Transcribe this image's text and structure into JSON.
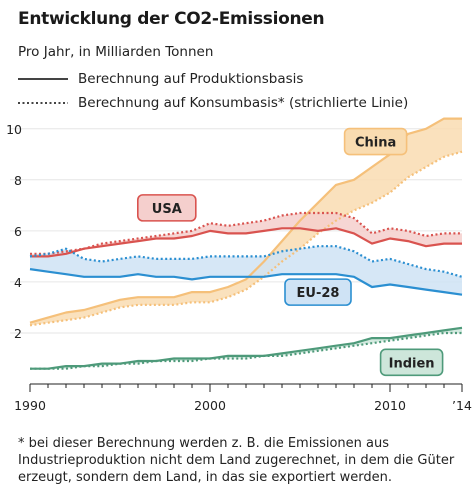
{
  "chart_data": {
    "type": "line",
    "title": "Entwicklung der CO2-Emissionen",
    "subtitle": "Pro Jahr, in Milliarden Tonnen",
    "legend": [
      {
        "label": "Berechnung auf Produktionsbasis",
        "style": "solid"
      },
      {
        "label": "Berechnung auf Konsumbasis* (strichlierte Linie)",
        "style": "dotted"
      }
    ],
    "x_ticks": [
      "1990",
      "2000",
      "2010",
      "’14"
    ],
    "y_ticks": [
      "2",
      "4",
      "6",
      "8",
      "10"
    ],
    "xlim": [
      1990,
      2014
    ],
    "ylim": [
      0,
      10.5
    ],
    "grid": "horizontal",
    "x": [
      1990,
      1991,
      1992,
      1993,
      1994,
      1995,
      1996,
      1997,
      1998,
      1999,
      2000,
      2001,
      2002,
      2003,
      2004,
      2005,
      2006,
      2007,
      2008,
      2009,
      2010,
      2011,
      2012,
      2013,
      2014
    ],
    "series": [
      {
        "name": "China",
        "color": "#f5c07a",
        "fill": "#f9dcb1",
        "production": [
          2.4,
          2.6,
          2.8,
          2.9,
          3.1,
          3.3,
          3.4,
          3.4,
          3.4,
          3.6,
          3.6,
          3.8,
          4.1,
          4.8,
          5.6,
          6.4,
          7.1,
          7.8,
          8.0,
          8.5,
          9.0,
          9.8,
          10.0,
          10.4,
          10.4
        ],
        "consumption": [
          2.3,
          2.4,
          2.5,
          2.6,
          2.8,
          3.0,
          3.1,
          3.1,
          3.1,
          3.2,
          3.2,
          3.4,
          3.7,
          4.2,
          4.8,
          5.3,
          5.9,
          6.4,
          6.8,
          7.1,
          7.5,
          8.1,
          8.5,
          8.9,
          9.1
        ],
        "label": "China"
      },
      {
        "name": "USA",
        "color": "#d9534f",
        "fill": "#f5cfcd",
        "production": [
          5.0,
          5.0,
          5.1,
          5.3,
          5.4,
          5.5,
          5.6,
          5.7,
          5.7,
          5.8,
          6.0,
          5.9,
          5.9,
          6.0,
          6.1,
          6.1,
          6.0,
          6.1,
          5.9,
          5.5,
          5.7,
          5.6,
          5.4,
          5.5,
          5.5
        ],
        "consumption": [
          5.1,
          5.1,
          5.2,
          5.3,
          5.5,
          5.6,
          5.7,
          5.8,
          5.9,
          6.0,
          6.3,
          6.2,
          6.3,
          6.4,
          6.6,
          6.7,
          6.7,
          6.7,
          6.5,
          5.9,
          6.1,
          6.0,
          5.8,
          5.9,
          5.9
        ],
        "label": "USA"
      },
      {
        "name": "EU-28",
        "color": "#2b8fd1",
        "fill": "#cfe3f5",
        "production": [
          4.5,
          4.4,
          4.3,
          4.2,
          4.2,
          4.2,
          4.3,
          4.2,
          4.2,
          4.1,
          4.2,
          4.2,
          4.2,
          4.2,
          4.3,
          4.3,
          4.3,
          4.3,
          4.2,
          3.8,
          3.9,
          3.8,
          3.7,
          3.6,
          3.5
        ],
        "consumption": [
          5.0,
          5.1,
          5.3,
          4.9,
          4.8,
          4.9,
          5.0,
          4.9,
          4.9,
          4.9,
          5.0,
          5.0,
          5.0,
          5.0,
          5.2,
          5.3,
          5.4,
          5.4,
          5.2,
          4.8,
          4.9,
          4.7,
          4.5,
          4.4,
          4.2
        ],
        "label": "EU-28"
      },
      {
        "name": "Indien",
        "color": "#4e9a7a",
        "fill": "#cde6da",
        "production": [
          0.6,
          0.6,
          0.7,
          0.7,
          0.8,
          0.8,
          0.9,
          0.9,
          1.0,
          1.0,
          1.0,
          1.1,
          1.1,
          1.1,
          1.2,
          1.3,
          1.4,
          1.5,
          1.6,
          1.8,
          1.8,
          1.9,
          2.0,
          2.1,
          2.2
        ],
        "consumption": [
          0.6,
          0.6,
          0.6,
          0.7,
          0.7,
          0.8,
          0.8,
          0.9,
          0.9,
          0.9,
          1.0,
          1.0,
          1.0,
          1.1,
          1.1,
          1.2,
          1.3,
          1.4,
          1.5,
          1.6,
          1.7,
          1.8,
          1.9,
          2.0,
          2.0
        ],
        "label": "Indien"
      }
    ]
  },
  "footnote": "* bei dieser Berechnung werden z. B. die Emissionen aus Industrieproduktion nicht dem Land zugerechnet, in dem die Güter erzeugt, sondern dem Land, in das sie exportiert werden."
}
